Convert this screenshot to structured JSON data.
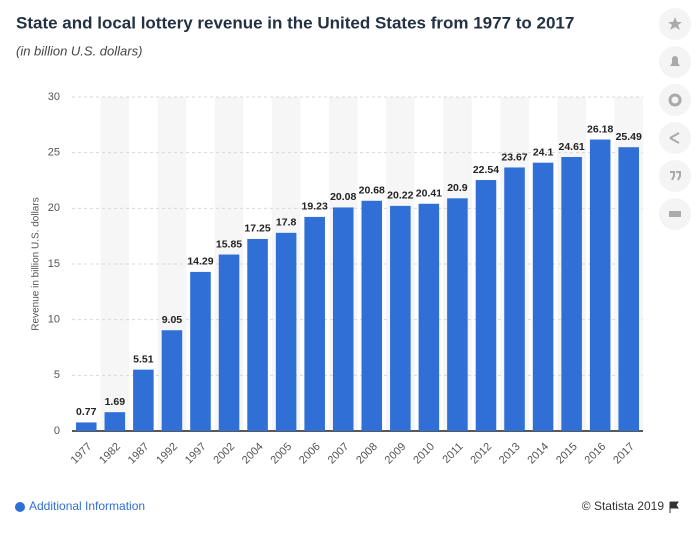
{
  "chart_data": {
    "type": "bar",
    "title": "State and local lottery revenue in the United States from 1977 to 2017",
    "subtitle": "(in billion U.S. dollars)",
    "y_label": "Revenue in billion U.S. dollars",
    "categories": [
      "1977",
      "1982",
      "1987",
      "1992",
      "1997",
      "2002",
      "2004",
      "2005",
      "2006",
      "2007",
      "2008",
      "2009",
      "2010",
      "2011",
      "2012",
      "2013",
      "2014",
      "2015",
      "2016",
      "2017"
    ],
    "values": [
      0.77,
      1.69,
      5.51,
      9.05,
      14.29,
      15.85,
      17.25,
      17.8,
      19.23,
      20.08,
      20.68,
      20.22,
      20.41,
      20.9,
      22.54,
      23.67,
      24.1,
      24.61,
      26.18,
      25.49
    ],
    "color": "#2f6fd6",
    "ylim": [
      0,
      30
    ],
    "yticks": [
      0,
      5,
      10,
      15,
      20,
      25,
      30
    ],
    "grid": true
  },
  "footer": {
    "info": "Additional Information",
    "credit": "© Statista 2019"
  }
}
